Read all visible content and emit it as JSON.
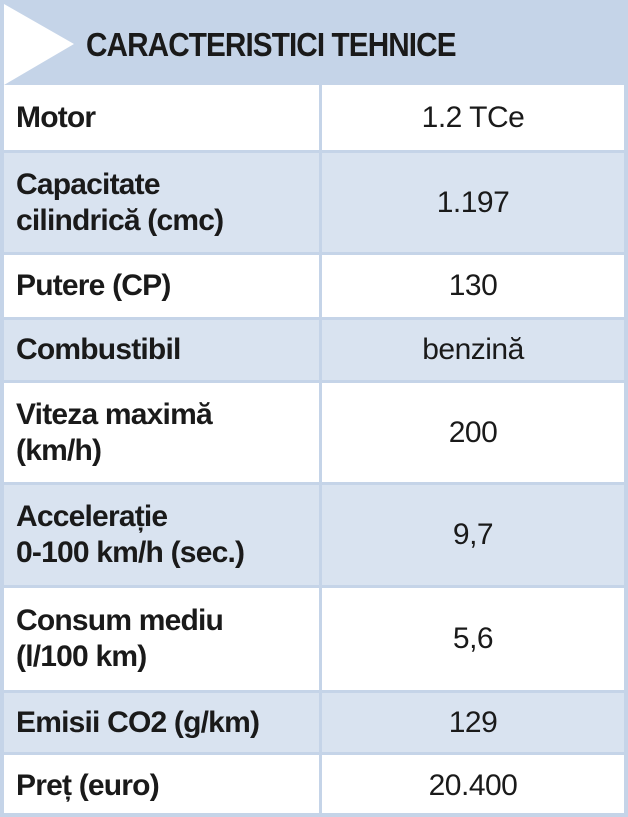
{
  "header": {
    "title": "CARACTERISTICI TEHNICE"
  },
  "table": {
    "rows": [
      [
        "Motor",
        "1.2 TCe"
      ],
      [
        "Capacitate\ncilindrică (cmc)",
        "1.197"
      ],
      [
        "Putere (CP)",
        "130"
      ],
      [
        "Combustibil",
        "benzină"
      ],
      [
        "Viteza maximă\n(km/h)",
        "200"
      ],
      [
        "Accelerație\n0-100 km/h (sec.)",
        "9,7"
      ],
      [
        "Consum mediu\n(l/100 km)",
        "5,6"
      ],
      [
        "Emisii CO2 (g/km)",
        "129"
      ],
      [
        "Preț (euro)",
        "20.400"
      ]
    ]
  }
}
